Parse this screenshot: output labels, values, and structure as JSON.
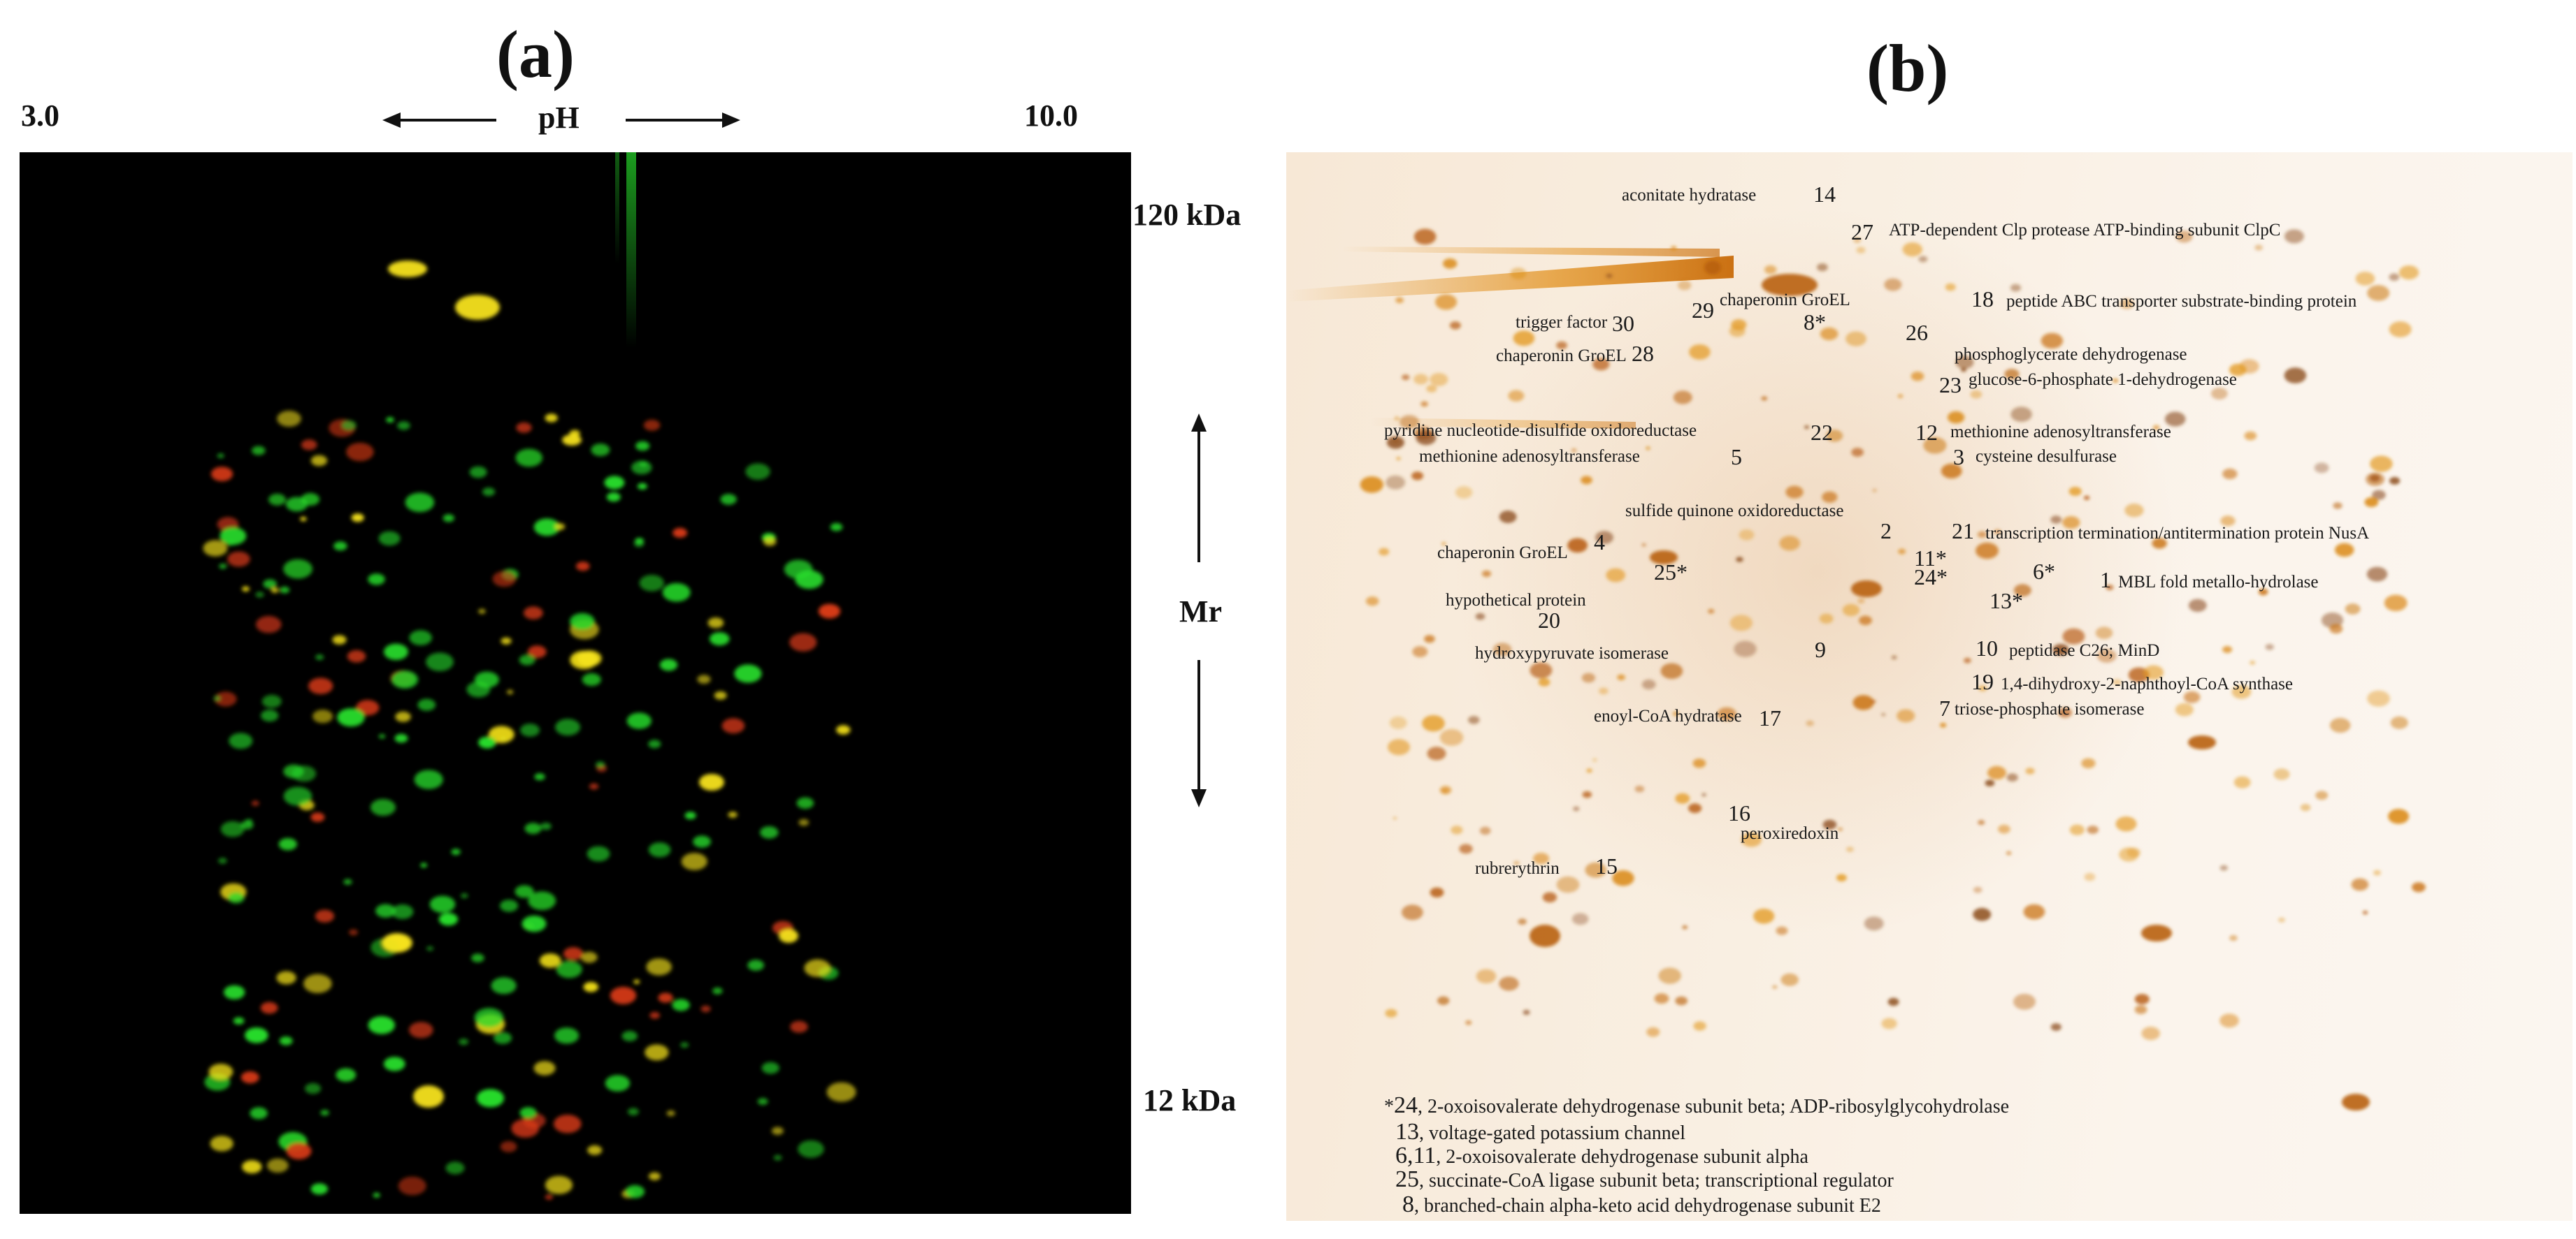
{
  "panel_a": {
    "letter": "(a)",
    "ph_low": "3.0",
    "ph_high": "10.0",
    "ph_label": "pH",
    "mw_high": "120 kDa",
    "mw_low": "12 kDa",
    "mr_label": "Mr"
  },
  "panel_b": {
    "letter": "(b)",
    "spots": [
      {
        "num": "14",
        "name": "aconitate hydratase"
      },
      {
        "num": "27",
        "name": "ATP-dependent Clp protease ATP-binding subunit ClpC"
      },
      {
        "num": "30",
        "name": "trigger factor"
      },
      {
        "num": "29",
        "name": ""
      },
      {
        "num": "8*",
        "name": "chaperonin GroEL"
      },
      {
        "num": "18",
        "name": "peptide ABC transporter substrate-binding protein"
      },
      {
        "num": "28",
        "name": "chaperonin GroEL"
      },
      {
        "num": "26",
        "name": "phosphoglycerate dehydrogenase"
      },
      {
        "num": "23",
        "name": "glucose-6-phosphate 1-dehydrogenase"
      },
      {
        "num": "22",
        "name": "pyridine nucleotide-disulfide oxidoreductase"
      },
      {
        "num": "12",
        "name": "methionine adenosyltransferase"
      },
      {
        "num": "5",
        "name": "methionine adenosyltransferase"
      },
      {
        "num": "3",
        "name": "cysteine desulfurase"
      },
      {
        "num": "2",
        "name": "sulfide quinone oxidoreductase"
      },
      {
        "num": "21",
        "name": "transcription termination/antitermination protein NusA"
      },
      {
        "num": "4",
        "name": "chaperonin GroEL"
      },
      {
        "num": "11*",
        "name": ""
      },
      {
        "num": "6*",
        "name": ""
      },
      {
        "num": "25*",
        "name": ""
      },
      {
        "num": "24*",
        "name": ""
      },
      {
        "num": "13*",
        "name": ""
      },
      {
        "num": "1",
        "name": "MBL fold metallo-hydrolase"
      },
      {
        "num": "20",
        "name": "hypothetical protein"
      },
      {
        "num": "9",
        "name": "hydroxypyruvate isomerase"
      },
      {
        "num": "10",
        "name": "peptidase C26; MinD"
      },
      {
        "num": "19",
        "name": "1,4-dihydroxy-2-naphthoyl-CoA synthase"
      },
      {
        "num": "7",
        "name": "triose-phosphate isomerase"
      },
      {
        "num": "17",
        "name": "enoyl-CoA hydratase"
      },
      {
        "num": "16",
        "name": "peroxiredoxin"
      },
      {
        "num": "15",
        "name": "rubrerythrin"
      }
    ],
    "legend": [
      {
        "prefix": "*",
        "nums": "24",
        "text": ", 2-oxoisovalerate dehydrogenase subunit beta; ADP-ribosylglycohydrolase"
      },
      {
        "prefix": "",
        "nums": "13",
        "text": ", voltage-gated potassium channel"
      },
      {
        "prefix": "",
        "nums": "6,11",
        "text": ",  2-oxoisovalerate dehydrogenase subunit alpha"
      },
      {
        "prefix": "",
        "nums": "25",
        "text": ", succinate-CoA ligase subunit beta; transcriptional regulator"
      },
      {
        "prefix": "",
        "nums": "8",
        "text": ", branched-chain alpha-keto acid dehydrogenase subunit E2"
      }
    ]
  },
  "colors": {
    "gel_green": "#27d92a",
    "gel_red": "#d83a18",
    "gel_yellow": "#f5e21a",
    "circle_green": "#2fae6a",
    "circle_red": "#d8402c",
    "stain_orange": "#d9860f"
  }
}
